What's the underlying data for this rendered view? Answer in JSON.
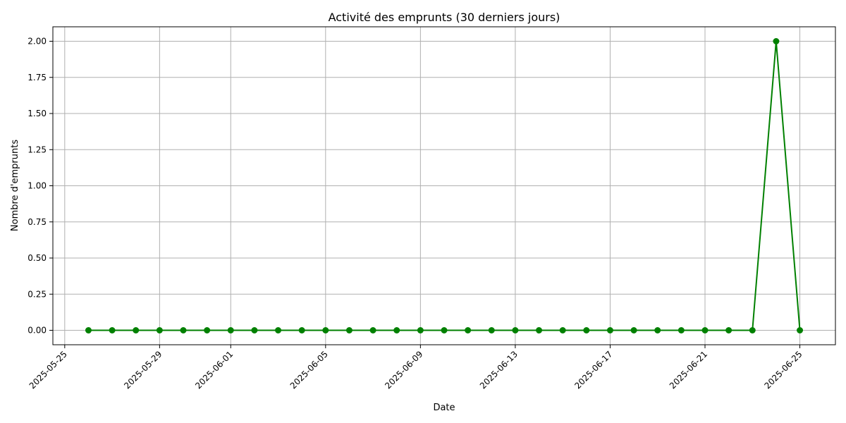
{
  "chart_data": {
    "type": "line",
    "title": "Activité des emprunts (30 derniers jours)",
    "xlabel": "Date",
    "ylabel": "Nombre d'emprunts",
    "grid": true,
    "color": "#008000",
    "marker": "circle",
    "xlim": [
      "2025-05-24T12:00",
      "2025-06-26T12:00"
    ],
    "ylim": [
      -0.1,
      2.1
    ],
    "x_ticks": [
      "2025-05-25",
      "2025-05-29",
      "2025-06-01",
      "2025-06-05",
      "2025-06-09",
      "2025-06-13",
      "2025-06-17",
      "2025-06-21",
      "2025-06-25"
    ],
    "y_ticks": [
      0,
      0.25,
      0.5,
      0.75,
      1.0,
      1.25,
      1.5,
      1.75,
      2.0
    ],
    "y_tick_labels": [
      "0.00",
      "0.25",
      "0.50",
      "0.75",
      "1.00",
      "1.25",
      "1.50",
      "1.75",
      "2.00"
    ],
    "x": [
      "2025-05-26",
      "2025-05-27",
      "2025-05-28",
      "2025-05-29",
      "2025-05-30",
      "2025-05-31",
      "2025-06-01",
      "2025-06-02",
      "2025-06-03",
      "2025-06-04",
      "2025-06-05",
      "2025-06-06",
      "2025-06-07",
      "2025-06-08",
      "2025-06-09",
      "2025-06-10",
      "2025-06-11",
      "2025-06-12",
      "2025-06-13",
      "2025-06-14",
      "2025-06-15",
      "2025-06-16",
      "2025-06-17",
      "2025-06-18",
      "2025-06-19",
      "2025-06-20",
      "2025-06-21",
      "2025-06-22",
      "2025-06-23",
      "2025-06-24",
      "2025-06-25"
    ],
    "y": [
      0,
      0,
      0,
      0,
      0,
      0,
      0,
      0,
      0,
      0,
      0,
      0,
      0,
      0,
      0,
      0,
      0,
      0,
      0,
      0,
      0,
      0,
      0,
      0,
      0,
      0,
      0,
      0,
      0,
      2,
      0
    ]
  }
}
